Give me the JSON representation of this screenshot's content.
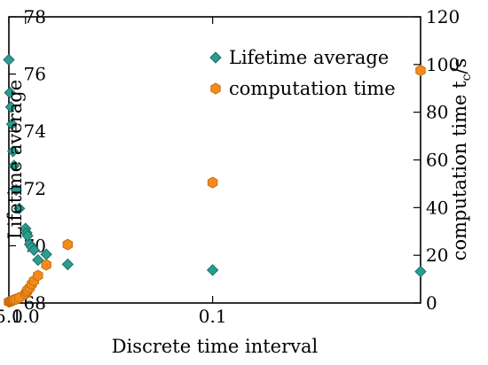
{
  "chart_data": {
    "type": "scatter",
    "xlabel": "Discrete time interval",
    "ylabel_left": "Lifetime average",
    "ylabel_right": "computation time t",
    "ylabel_right_sub": "c",
    "ylabel_right_unit": "/s",
    "x_scale": "reciprocal",
    "x_ticks": [
      {
        "value": 5.0,
        "label": "5.0"
      },
      {
        "value": 1.0,
        "label": "1.0"
      },
      {
        "value": 0.1,
        "label": "0.1"
      }
    ],
    "x_range": [
      5.0,
      0.05
    ],
    "ylim_left": [
      68,
      78
    ],
    "yticks_left": [
      "68",
      "70",
      "72",
      "74",
      "76",
      "78"
    ],
    "ylim_right": [
      0,
      120
    ],
    "yticks_right": [
      "0",
      "20",
      "40",
      "60",
      "80",
      "100",
      "120"
    ],
    "legend_position": "top-right",
    "series": [
      {
        "name": "Lifetime average",
        "axis": "left",
        "marker": "diamond",
        "color": "#2a9d8f",
        "points": [
          [
            5.0,
            76.5
          ],
          [
            4.0,
            75.35
          ],
          [
            3.33,
            74.85
          ],
          [
            2.86,
            74.25
          ],
          [
            2.5,
            73.3
          ],
          [
            2.22,
            72.8
          ],
          [
            1.82,
            71.95
          ],
          [
            1.43,
            71.3
          ],
          [
            1.0,
            70.6
          ],
          [
            0.95,
            70.45
          ],
          [
            0.91,
            70.35
          ],
          [
            0.83,
            70.05
          ],
          [
            0.77,
            69.95
          ],
          [
            0.71,
            69.85
          ],
          [
            0.625,
            69.5
          ],
          [
            0.5,
            69.7
          ],
          [
            0.33,
            69.35
          ],
          [
            0.1,
            69.15
          ],
          [
            0.05,
            69.1
          ]
        ]
      },
      {
        "name": "computation time",
        "axis": "right",
        "marker": "hexagon",
        "color": "#f28c1e",
        "points": [
          [
            5.0,
            0.5
          ],
          [
            4.0,
            0.6
          ],
          [
            3.33,
            0.8
          ],
          [
            2.86,
            0.9
          ],
          [
            2.5,
            1.1
          ],
          [
            2.22,
            1.3
          ],
          [
            1.82,
            1.6
          ],
          [
            1.43,
            2.2
          ],
          [
            1.0,
            3.8
          ],
          [
            0.95,
            4.6
          ],
          [
            0.91,
            5.4
          ],
          [
            0.83,
            6.4
          ],
          [
            0.77,
            7.9
          ],
          [
            0.71,
            9.3
          ],
          [
            0.625,
            11.5
          ],
          [
            0.5,
            16.0
          ],
          [
            0.33,
            24.5
          ],
          [
            0.1,
            50.5
          ],
          [
            0.05,
            97.5
          ]
        ]
      }
    ]
  }
}
